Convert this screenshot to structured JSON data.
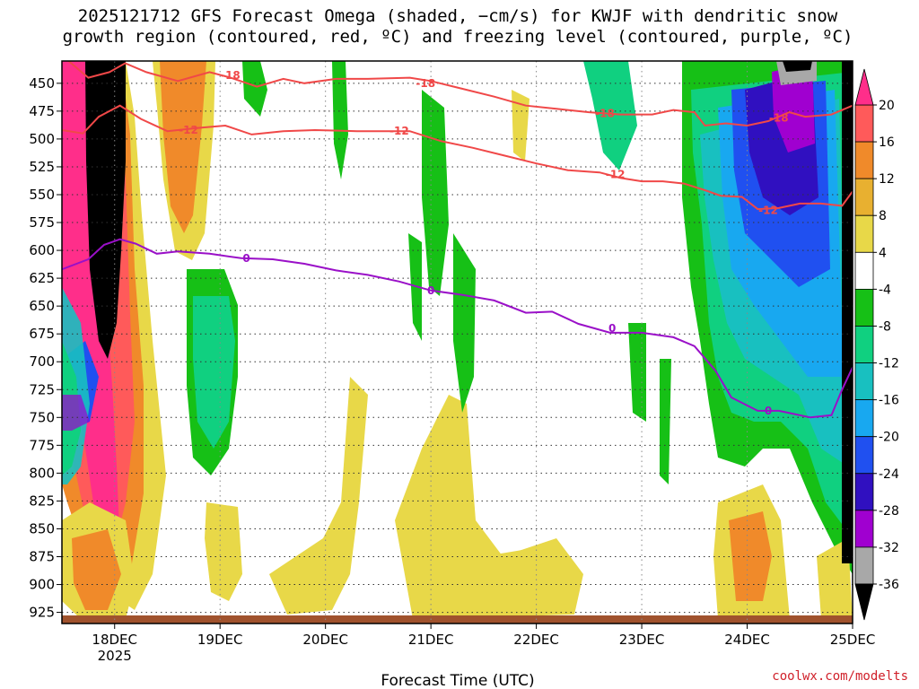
{
  "chart_data": {
    "type": "heatmap",
    "title_line1": "2025121712 GFS Forecast Omega (shaded, −cm/s) for KWJF with dendritic snow",
    "title_line2": "growth region (contoured, red, ºC) and freezing level (contoured, purple, ºC)",
    "xlabel": "Forecast Time (UTC)",
    "credit": "coolwx.com/modelts",
    "y_axis": {
      "ticks": [
        450,
        475,
        500,
        525,
        550,
        575,
        600,
        625,
        650,
        675,
        700,
        725,
        750,
        775,
        800,
        825,
        850,
        875,
        900,
        925
      ],
      "range": [
        430,
        935
      ]
    },
    "x_axis": {
      "range_days": [
        17.5,
        25.0
      ],
      "ticks": [
        {
          "day": 18,
          "label": "18DEC",
          "sublabel": "2025"
        },
        {
          "day": 19,
          "label": "19DEC",
          "sublabel": ""
        },
        {
          "day": 20,
          "label": "20DEC",
          "sublabel": ""
        },
        {
          "day": 21,
          "label": "21DEC",
          "sublabel": ""
        },
        {
          "day": 22,
          "label": "22DEC",
          "sublabel": ""
        },
        {
          "day": 23,
          "label": "23DEC",
          "sublabel": ""
        },
        {
          "day": 24,
          "label": "24DEC",
          "sublabel": ""
        },
        {
          "day": 25,
          "label": "25DEC",
          "sublabel": ""
        }
      ]
    },
    "grid": true,
    "colorbar": {
      "levels": [
        20,
        16,
        12,
        8,
        4,
        -4,
        -8,
        -12,
        -16,
        -20,
        -24,
        -28,
        -32,
        -36
      ],
      "colors": [
        "#ff5a5a",
        "#f08a2a",
        "#e8b030",
        "#e8d848",
        "#ffffff",
        "#16c016",
        "#10d080",
        "#18c0c0",
        "#18a8f0",
        "#2050f0",
        "#3010c0",
        "#a000d0",
        "#a8a8a8",
        "#000000"
      ],
      "top_cap_color": "#ff2e8a",
      "bottom_cap_color": "#000000"
    },
    "contours": [
      {
        "name": "-18",
        "color": "#f04848",
        "points": [
          [
            17.5,
            425
          ],
          [
            17.75,
            445
          ],
          [
            17.95,
            440
          ],
          [
            18.1,
            432
          ],
          [
            18.3,
            440
          ],
          [
            18.6,
            448
          ],
          [
            18.9,
            440
          ],
          [
            19.1,
            445
          ],
          [
            19.35,
            453
          ],
          [
            19.6,
            446
          ],
          [
            19.8,
            450
          ],
          [
            20.1,
            446
          ],
          [
            20.4,
            446
          ],
          [
            20.8,
            445
          ],
          [
            21.0,
            448
          ],
          [
            21.3,
            455
          ],
          [
            21.6,
            462
          ],
          [
            21.9,
            470
          ],
          [
            22.2,
            473
          ],
          [
            22.5,
            476
          ],
          [
            22.8,
            478
          ],
          [
            23.1,
            478
          ],
          [
            23.3,
            474
          ],
          [
            23.5,
            476
          ],
          [
            23.6,
            488
          ],
          [
            23.8,
            486
          ],
          [
            24.0,
            488
          ],
          [
            24.2,
            484
          ],
          [
            24.4,
            476
          ],
          [
            24.55,
            480
          ],
          [
            24.8,
            478
          ],
          [
            25.0,
            470
          ]
        ],
        "labels": [
          [
            19.1,
            443
          ],
          [
            20.95,
            450
          ],
          [
            22.65,
            477
          ],
          [
            24.3,
            481
          ]
        ]
      },
      {
        "name": "-12",
        "color": "#f04848",
        "points": [
          [
            17.5,
            492
          ],
          [
            17.7,
            495
          ],
          [
            17.85,
            480
          ],
          [
            18.05,
            470
          ],
          [
            18.25,
            482
          ],
          [
            18.5,
            493
          ],
          [
            18.8,
            490
          ],
          [
            19.05,
            488
          ],
          [
            19.3,
            496
          ],
          [
            19.6,
            493
          ],
          [
            19.9,
            492
          ],
          [
            20.3,
            493
          ],
          [
            20.8,
            493
          ],
          [
            21.1,
            502
          ],
          [
            21.4,
            508
          ],
          [
            21.7,
            515
          ],
          [
            22.0,
            522
          ],
          [
            22.3,
            528
          ],
          [
            22.6,
            530
          ],
          [
            22.8,
            535
          ],
          [
            23.0,
            538
          ],
          [
            23.2,
            538
          ],
          [
            23.4,
            540
          ],
          [
            23.6,
            546
          ],
          [
            23.75,
            551
          ],
          [
            23.95,
            552
          ],
          [
            24.1,
            563
          ],
          [
            24.3,
            562
          ],
          [
            24.5,
            558
          ],
          [
            24.7,
            558
          ],
          [
            24.9,
            560
          ],
          [
            25.0,
            547
          ]
        ],
        "labels": [
          [
            18.7,
            492
          ],
          [
            20.7,
            493
          ],
          [
            22.75,
            532
          ],
          [
            24.2,
            564
          ]
        ]
      },
      {
        "name": "0",
        "color": "#9a10c8",
        "points": [
          [
            17.5,
            617
          ],
          [
            17.75,
            608
          ],
          [
            17.9,
            595
          ],
          [
            18.05,
            590
          ],
          [
            18.2,
            594
          ],
          [
            18.4,
            603
          ],
          [
            18.6,
            601
          ],
          [
            18.9,
            603
          ],
          [
            19.2,
            607
          ],
          [
            19.5,
            608
          ],
          [
            19.8,
            612
          ],
          [
            20.1,
            618
          ],
          [
            20.4,
            622
          ],
          [
            20.7,
            628
          ],
          [
            21.0,
            636
          ],
          [
            21.3,
            640
          ],
          [
            21.6,
            645
          ],
          [
            21.9,
            656
          ],
          [
            22.15,
            655
          ],
          [
            22.4,
            666
          ],
          [
            22.7,
            674
          ],
          [
            23.0,
            674
          ],
          [
            23.3,
            678
          ],
          [
            23.5,
            686
          ],
          [
            23.7,
            708
          ],
          [
            23.85,
            732
          ],
          [
            24.1,
            744
          ],
          [
            24.3,
            744
          ],
          [
            24.6,
            750
          ],
          [
            24.8,
            748
          ],
          [
            24.9,
            725
          ],
          [
            25.0,
            705
          ]
        ],
        "labels": [
          [
            19.25,
            607
          ],
          [
            21.0,
            636
          ],
          [
            22.72,
            670
          ],
          [
            24.2,
            744
          ]
        ]
      }
    ]
  }
}
